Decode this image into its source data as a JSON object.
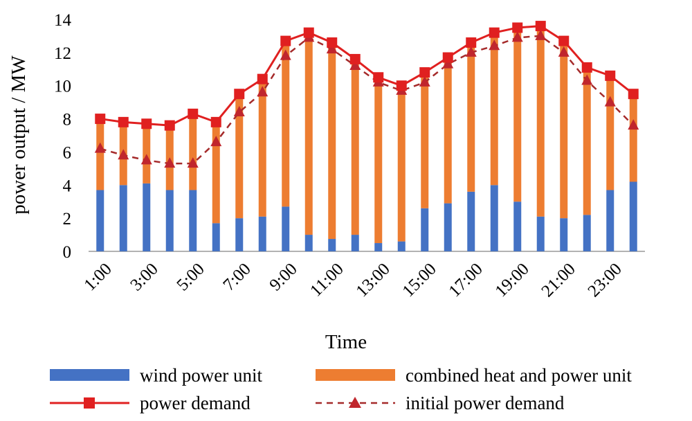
{
  "chart_data": {
    "type": "bar",
    "stacked": true,
    "title": "",
    "xlabel": "Time",
    "ylabel": "power output / MW",
    "ylim": [
      0,
      14
    ],
    "yticks": [
      "0",
      "2",
      "4",
      "6",
      "8",
      "10",
      "12",
      "14"
    ],
    "categories": [
      "1:00",
      "2:00",
      "3:00",
      "4:00",
      "5:00",
      "6:00",
      "7:00",
      "8:00",
      "9:00",
      "10:00",
      "11:00",
      "12:00",
      "13:00",
      "14:00",
      "15:00",
      "16:00",
      "17:00",
      "18:00",
      "19:00",
      "20:00",
      "21:00",
      "22:00",
      "23:00",
      "24:00"
    ],
    "xtick_labels": [
      "1:00",
      "3:00",
      "5:00",
      "7:00",
      "9:00",
      "11:00",
      "13:00",
      "15:00",
      "17:00",
      "19:00",
      "21:00",
      "23:00"
    ],
    "series": [
      {
        "name": "wind power unit",
        "kind": "bar",
        "color": "#4472C4",
        "values": [
          3.7,
          4.0,
          4.1,
          3.7,
          3.7,
          1.7,
          2.0,
          2.1,
          2.7,
          1.0,
          0.75,
          1.0,
          0.5,
          0.6,
          2.6,
          2.9,
          3.6,
          4.0,
          3.0,
          2.1,
          2.0,
          2.2,
          3.7,
          4.2
        ]
      },
      {
        "name": "combined heat and power unit",
        "kind": "bar",
        "color": "#ED7D31",
        "values": [
          4.3,
          3.8,
          3.6,
          3.9,
          4.6,
          6.1,
          7.5,
          8.3,
          10.0,
          12.2,
          11.85,
          10.6,
          10.0,
          9.4,
          8.2,
          8.8,
          9.0,
          9.2,
          10.5,
          11.5,
          10.7,
          8.9,
          6.9,
          5.3
        ]
      },
      {
        "name": "power demand",
        "kind": "line",
        "color": "#E02020",
        "marker": "square",
        "dash": "solid",
        "values": [
          8.0,
          7.8,
          7.7,
          7.6,
          8.3,
          7.8,
          9.5,
          10.4,
          12.7,
          13.2,
          12.6,
          11.6,
          10.5,
          10.0,
          10.8,
          11.7,
          12.6,
          13.2,
          13.5,
          13.6,
          12.7,
          11.1,
          10.6,
          9.5
        ]
      },
      {
        "name": "initial power demand",
        "kind": "line",
        "color": "#A52A2A",
        "marker": "triangle",
        "dash": "dashed",
        "values": [
          6.2,
          5.8,
          5.5,
          5.3,
          5.3,
          6.6,
          8.4,
          9.6,
          11.8,
          12.9,
          12.2,
          11.2,
          10.2,
          9.7,
          10.2,
          11.3,
          12.0,
          12.4,
          12.9,
          13.0,
          12.0,
          10.3,
          9.0,
          7.6
        ]
      }
    ],
    "legend": {
      "position": "bottom",
      "entries": [
        "wind power unit",
        "combined heat and power unit",
        "power demand",
        "initial power demand"
      ]
    }
  }
}
